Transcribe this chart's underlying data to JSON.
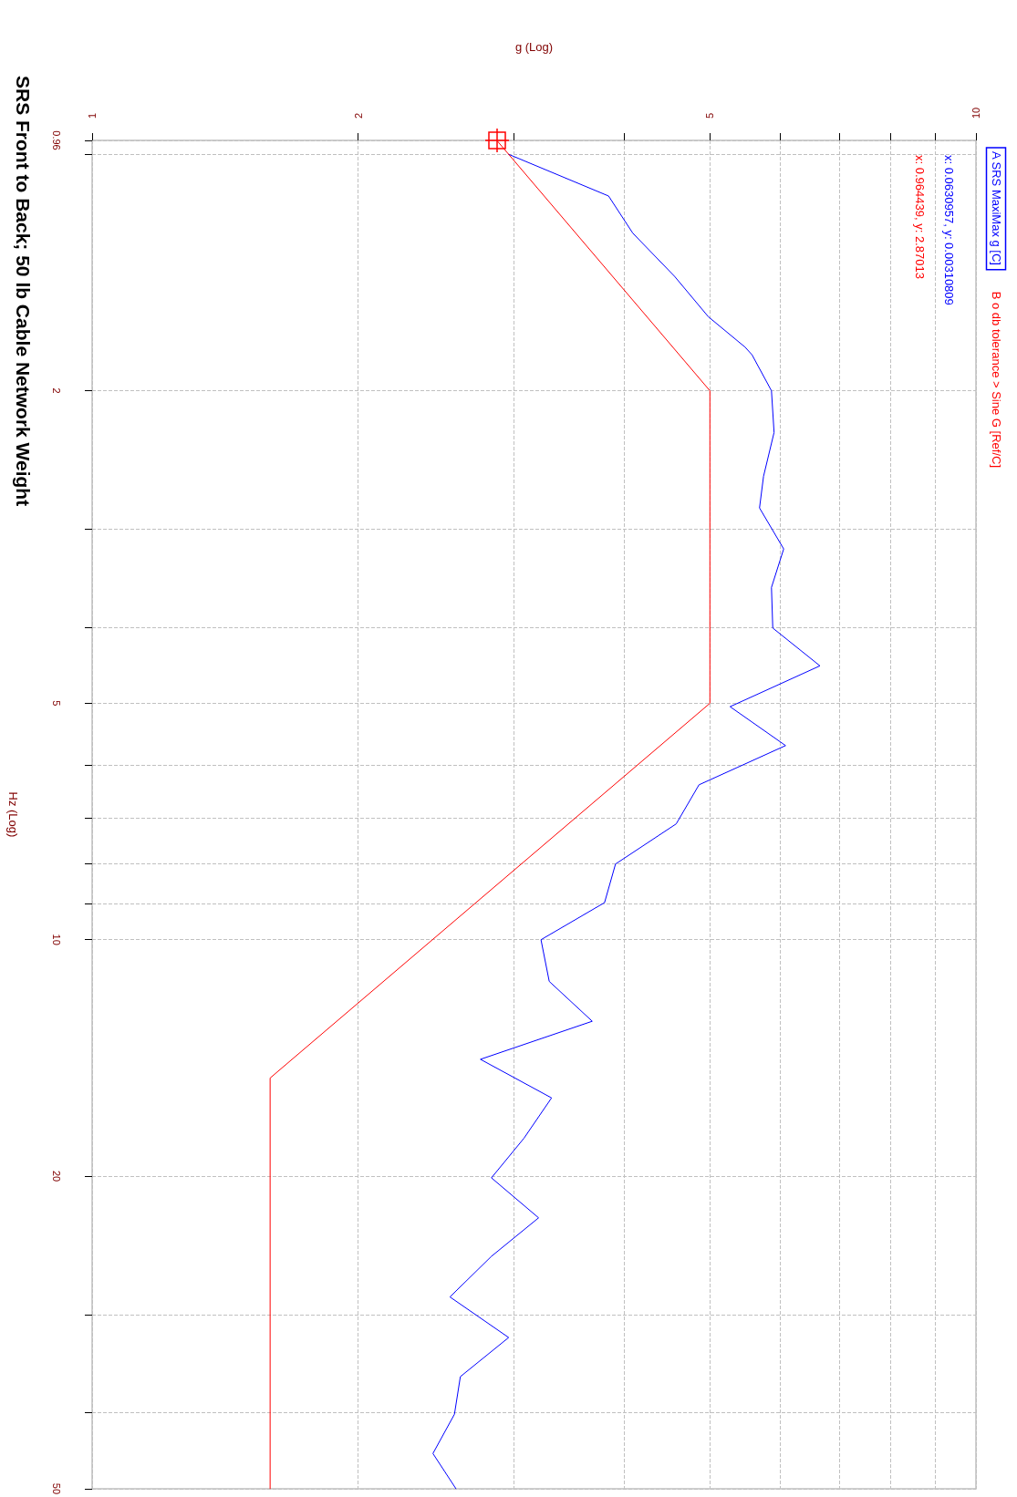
{
  "chart_data": {
    "type": "line",
    "title": "SRS Front to Back; 50 lb Cable Network Weight",
    "xlabel": "g (Log)",
    "ylabel": "Hz (Log)",
    "log": "xy",
    "xlim": [
      1,
      10
    ],
    "xticks": [
      1,
      2,
      {
        "value": 3,
        "label": null
      },
      {
        "value": 4,
        "label": null
      },
      5,
      {
        "value": 6,
        "label": null
      },
      {
        "value": 7,
        "label": null
      },
      {
        "value": 8,
        "label": null
      },
      {
        "value": 9,
        "label": null
      },
      10
    ],
    "ylim": [
      50,
      0.96
    ],
    "yticks": [
      0.96,
      {
        "value": 1,
        "label": null
      },
      2,
      {
        "value": 3,
        "label": null
      },
      {
        "value": 4,
        "label": null
      },
      5,
      {
        "value": 6,
        "label": null
      },
      {
        "value": 7,
        "label": null
      },
      {
        "value": 8,
        "label": null
      },
      {
        "value": 9,
        "label": null
      },
      10,
      20,
      {
        "value": 30,
        "label": null
      },
      {
        "value": 40,
        "label": null
      },
      50
    ],
    "grid": true,
    "legend": "right",
    "marker": "none",
    "line_style": "solid",
    "series": [
      {
        "name": "A SRS MaxiMax g [C]",
        "color": "#0000ff",
        "x": [
          2.96,
          3.84,
          4.09,
          4.56,
          4.98,
          5.48,
          5.58,
          5.87,
          5.91,
          5.75,
          5.69,
          6.06,
          5.87,
          5.89,
          6.66,
          5.27,
          6.09,
          4.86,
          4.58,
          3.91,
          3.8,
          3.22,
          3.29,
          3.68,
          2.75,
          3.31,
          3.08,
          2.83,
          3.2,
          2.83,
          2.54,
          2.96,
          2.61,
          2.57,
          2.43,
          2.58
        ],
        "values": [
          1.0,
          1.13,
          1.26,
          1.43,
          1.61,
          1.76,
          1.8,
          2.0,
          2.26,
          2.57,
          2.82,
          3.18,
          3.56,
          4.01,
          4.48,
          5.05,
          5.66,
          6.35,
          7.12,
          8.01,
          8.97,
          10.0,
          11.3,
          12.7,
          14.2,
          15.9,
          17.9,
          20.1,
          22.6,
          25.3,
          28.5,
          32.1,
          36.0,
          40.2,
          45.1,
          50
        ]
      },
      {
        "name": "B o db tolerance > Sine G [Ref/C]",
        "color": "#ff0000",
        "x": [
          2.87,
          5,
          5,
          1.59,
          1.59
        ],
        "values": [
          0.96,
          2,
          5,
          15,
          50
        ]
      }
    ],
    "annotations": [
      "x: 0.0630957, y: 0.00310809",
      "x: 0.964439, y: 2.87013"
    ]
  }
}
